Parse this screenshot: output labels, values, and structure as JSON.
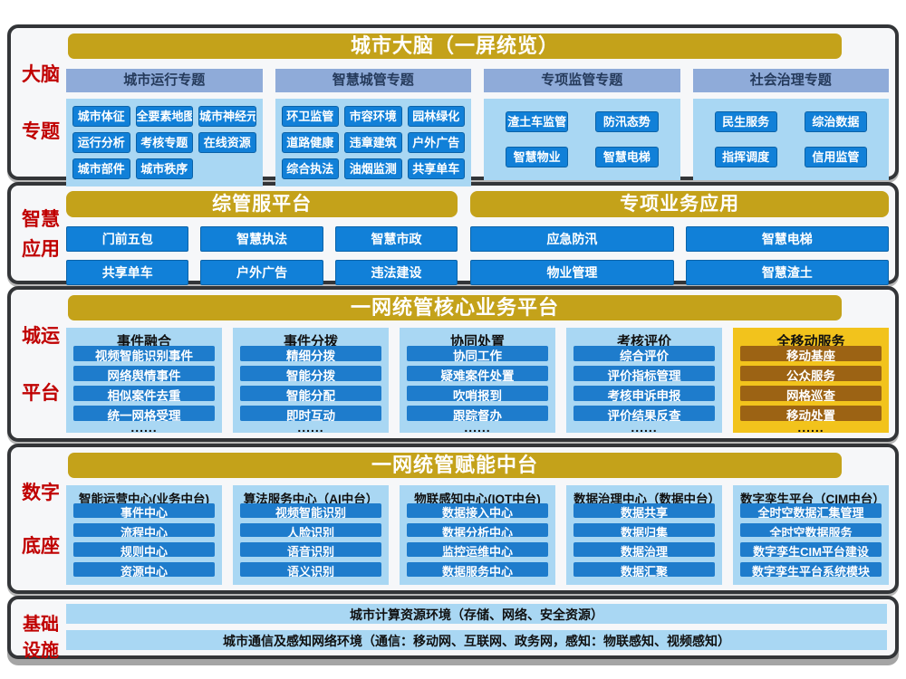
{
  "colors": {
    "gold_header": "#c4a21a",
    "periwinkle_header": "#8fabd9",
    "light_blue_panel": "#a9d7f3",
    "blue_button": "#1180d8",
    "red_label": "#c00000",
    "mobile_gold_panel": "#f2c31c",
    "mobile_brown_button": "#9c6314",
    "panel_border": "#333538"
  },
  "sections": {
    "brain": {
      "label": [
        "大脑",
        "专题"
      ],
      "header": "城市大脑（一屏统览）",
      "groups": [
        {
          "title": "城市运行专题",
          "items": [
            "城市体征",
            "全要素地图",
            "城市神经元",
            "运行分析",
            "考核专题",
            "在线资源",
            "城市部件",
            "城市秩序"
          ]
        },
        {
          "title": "智慧城管专题",
          "items": [
            "环卫监管",
            "市容环境",
            "园林绿化",
            "道路健康",
            "违章建筑",
            "户外广告",
            "综合执法",
            "油烟监测",
            "共享单车"
          ]
        },
        {
          "title": "专项监管专题",
          "items": [
            "渣土车监管",
            "防汛态势",
            "智慧物业",
            "智慧电梯"
          ]
        },
        {
          "title": "社会治理专题",
          "items": [
            "民生服务",
            "综治数据",
            "指挥调度",
            "信用监管"
          ]
        }
      ]
    },
    "apps": {
      "label": [
        "智慧",
        "应用"
      ],
      "groups": [
        {
          "header": "综管服平台",
          "items": [
            "门前五包",
            "智慧执法",
            "智慧市政",
            "共享单车",
            "户外广告",
            "违法建设"
          ]
        },
        {
          "header": "专项业务应用",
          "items": [
            "应急防汛",
            "智慧电梯",
            "物业管理",
            "智慧渣土"
          ]
        }
      ]
    },
    "core": {
      "label": [
        "城运",
        "平台"
      ],
      "header": "一网统管核心业务平台",
      "dots": "......",
      "columns": [
        {
          "title": "事件融合",
          "items": [
            "视频智能识别事件",
            "网络舆情事件",
            "相似案件去重",
            "统一网格受理"
          ]
        },
        {
          "title": "事件分拨",
          "items": [
            "精细分拨",
            "智能分拨",
            "智能分配",
            "即时互动"
          ]
        },
        {
          "title": "协同处置",
          "items": [
            "协同工作",
            "疑难案件处置",
            "吹哨报到",
            "跟踪督办"
          ]
        },
        {
          "title": "考核评价",
          "items": [
            "综合评价",
            "评价指标管理",
            "考核申诉申报",
            "评价结果反查"
          ]
        },
        {
          "title": "全移动服务",
          "items": [
            "移动基座",
            "公众服务",
            "网格巡查",
            "移动处置"
          ]
        }
      ]
    },
    "platform": {
      "label": [
        "数字",
        "底座"
      ],
      "header": "一网统管赋能中台",
      "columns": [
        {
          "title": "智能运营中心(业务中台)",
          "items": [
            "事件中心",
            "流程中心",
            "规则中心",
            "资源中心"
          ]
        },
        {
          "title": "算法服务中心（AI中台）",
          "items": [
            "视频智能识别",
            "人脸识别",
            "语音识别",
            "语义识别"
          ]
        },
        {
          "title": "物联感知中心(IOT中台)",
          "items": [
            "数据接入中心",
            "数据分析中心",
            "监控运维中心",
            "数据服务中心"
          ]
        },
        {
          "title": "数据治理中心（数据中台）",
          "items": [
            "数据共享",
            "数据归集",
            "数据治理",
            "数据汇聚"
          ]
        },
        {
          "title": "数字孪生平台（CIM中台）",
          "items": [
            "全时空数据汇集管理",
            "全时空数据服务",
            "数字孪生CIM平台建设",
            "数字孪生平台系统模块"
          ]
        }
      ]
    },
    "infra": {
      "label": [
        "基础",
        "设施"
      ],
      "bars": [
        "城市计算资源环境（存储、网络、安全资源）",
        "城市通信及感知网络环境（通信：移动网、互联网、政务网，感知：物联感知、视频感知）"
      ]
    }
  }
}
